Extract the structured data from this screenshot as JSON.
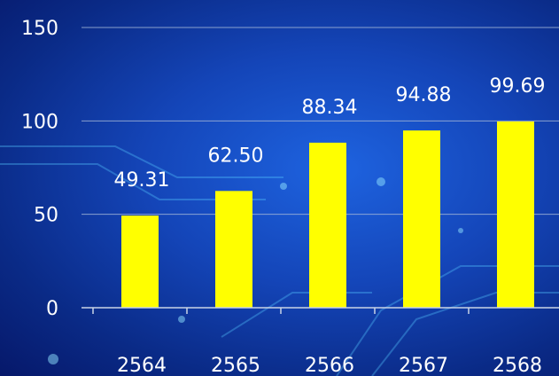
{
  "chart_data": {
    "type": "bar",
    "categories": [
      "2564",
      "2565",
      "2566",
      "2567",
      "2568"
    ],
    "values": [
      49.31,
      62.5,
      88.34,
      94.88,
      99.69
    ],
    "data_labels": [
      "49.31",
      "62.50",
      "88.34",
      "94.88",
      "99.69"
    ],
    "y_ticks": [
      "0",
      "50",
      "100",
      "150"
    ],
    "ylim": [
      0,
      150
    ],
    "grid": true,
    "bar_color": "#FFFF00",
    "text_color": "#FFFFFF",
    "title": "",
    "xlabel": "",
    "ylabel": ""
  }
}
